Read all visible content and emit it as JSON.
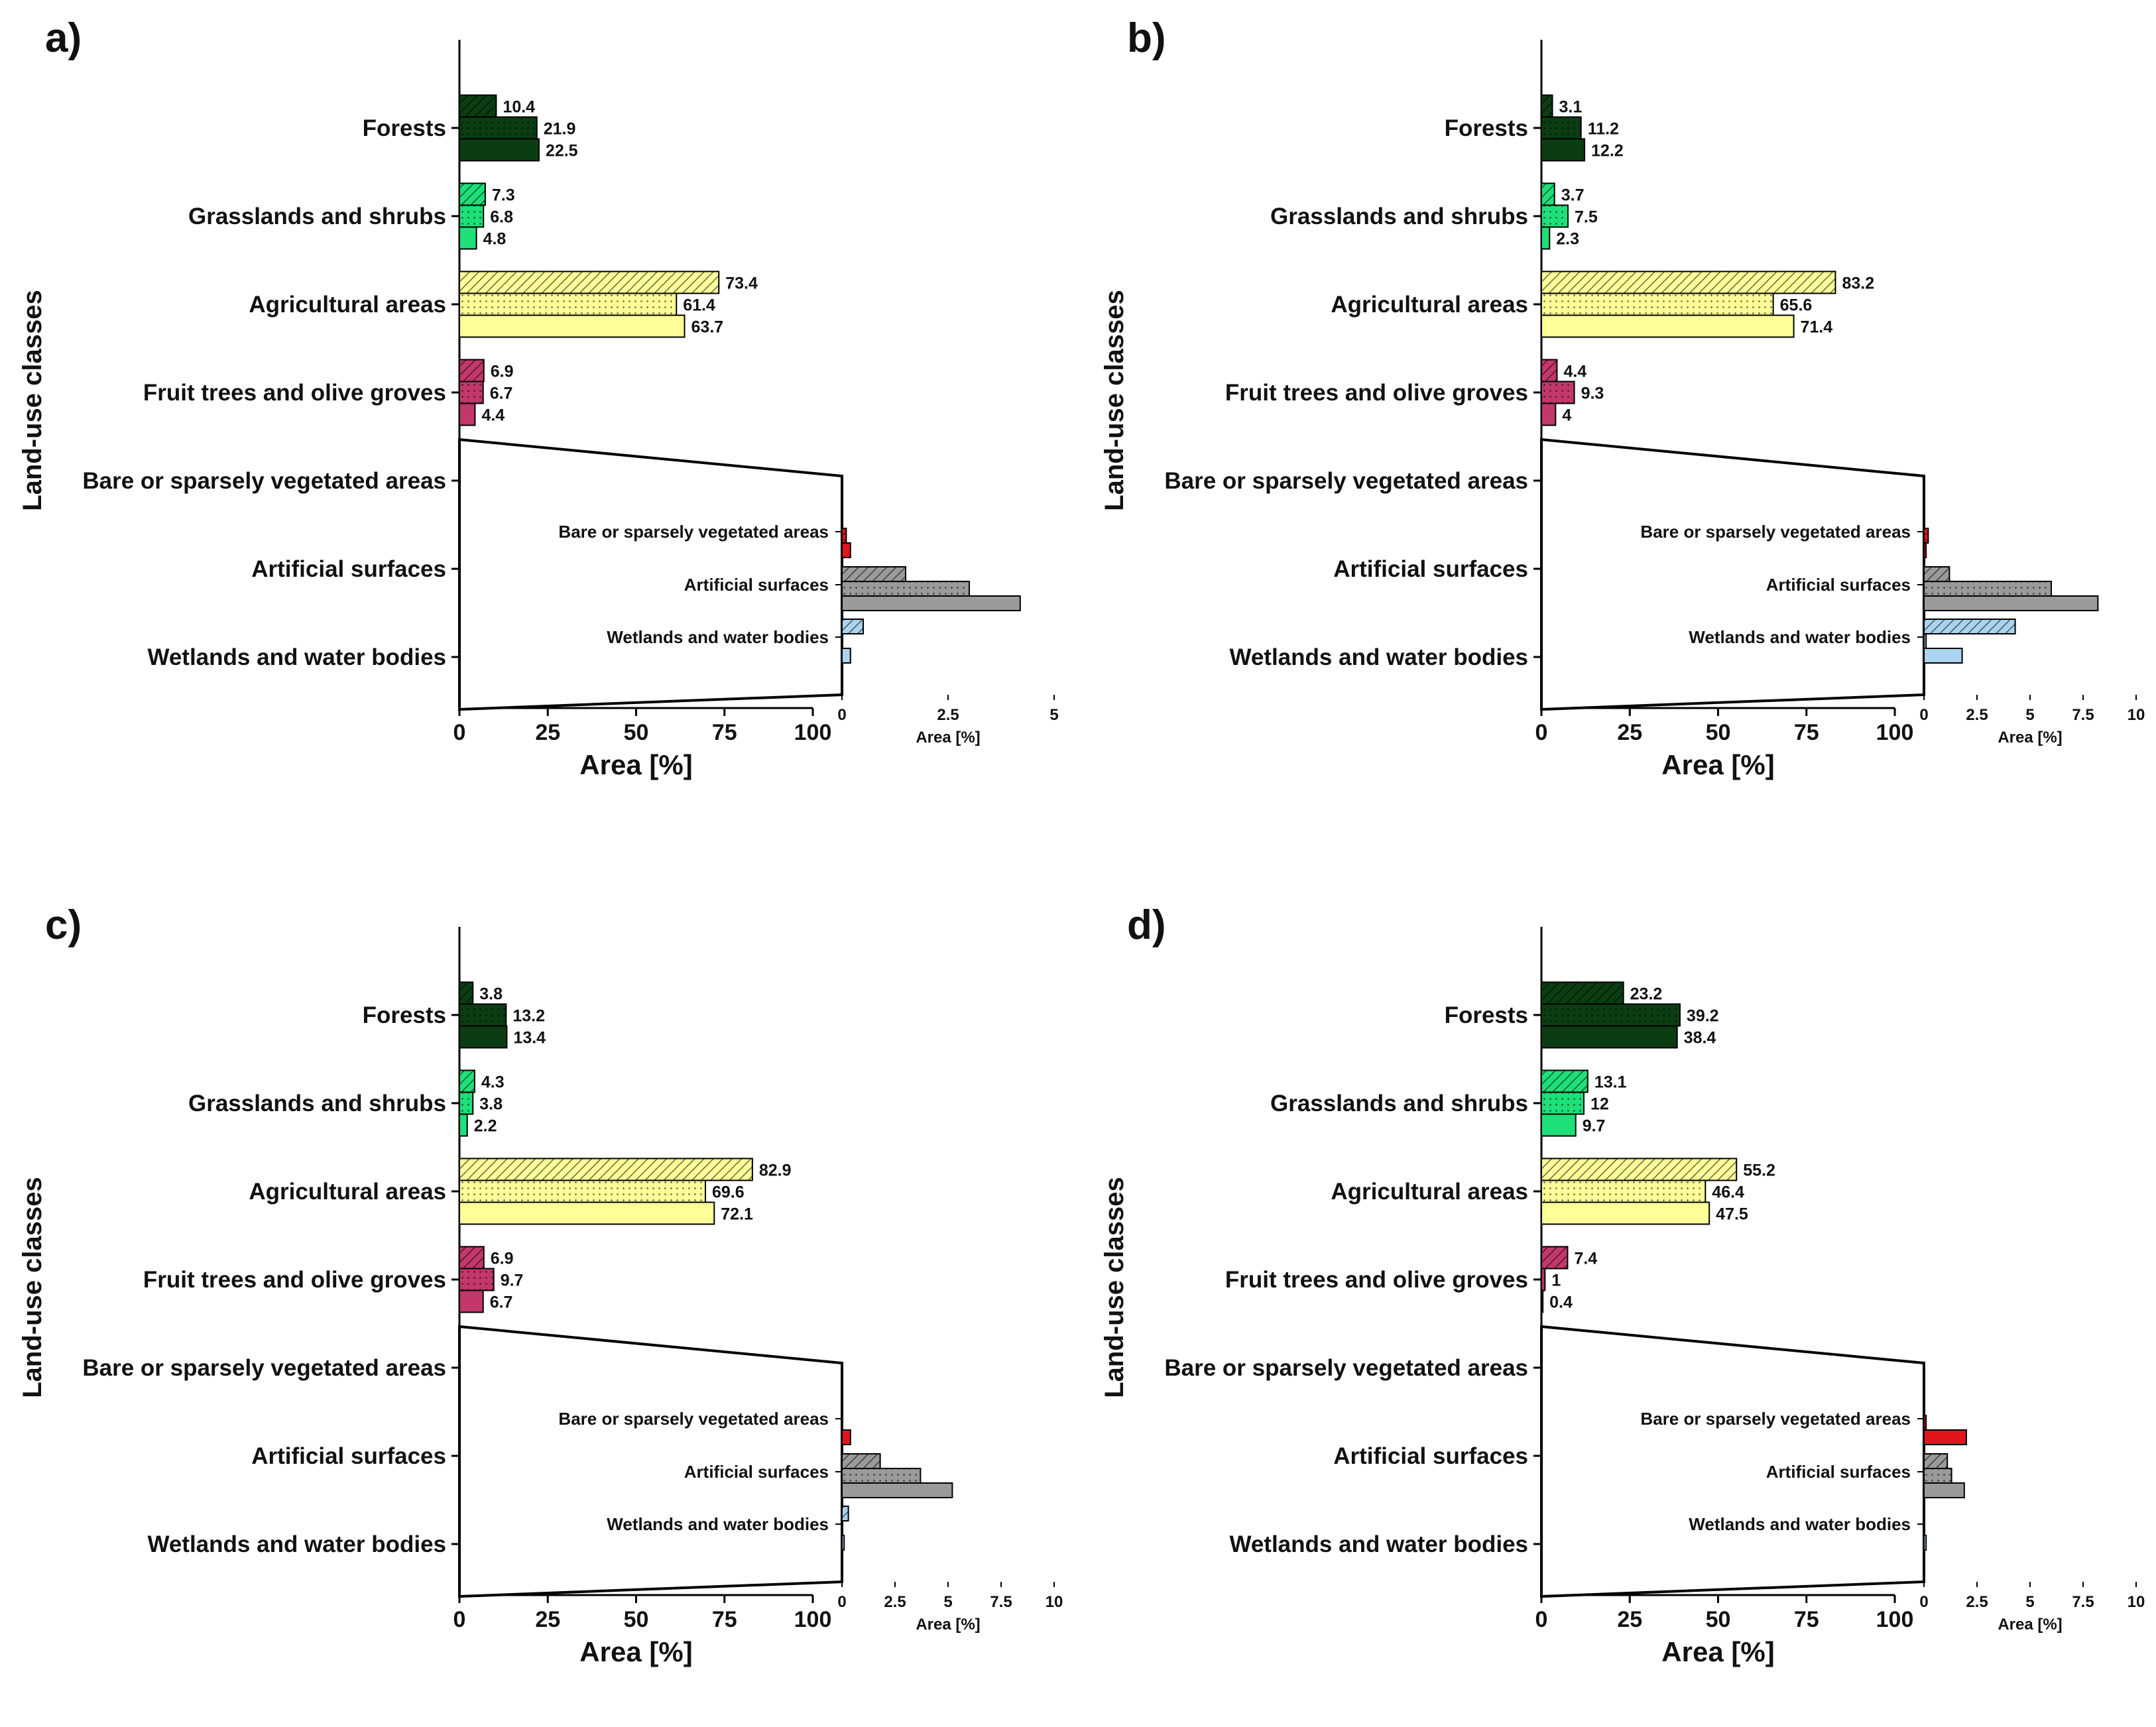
{
  "figure": {
    "y_axis_label": "Land-use classes",
    "x_axis_label": "Area [%]",
    "inset_x_axis_label": "Area [%]",
    "main_x_ticks": [
      "0",
      "25",
      "50",
      "75",
      "100"
    ],
    "categories": [
      "Forests",
      "Grasslands and shrubs",
      "Agricultural areas",
      "Fruit trees and olive groves",
      "Bare or sparsely vegetated areas",
      "Artificial surfaces",
      "Wetlands and water bodies"
    ],
    "inset_categories": [
      "Bare or sparsely vegetated areas",
      "Artificial surfaces",
      "Wetlands and water bodies"
    ],
    "category_colors": {
      "Forests": "#0b3d12",
      "Grasslands and shrubs": "#1ee078",
      "Agricultural areas": "#ffff99",
      "Fruit trees and olive groves": "#c2386b",
      "Bare or sparsely vegetated areas": "#e0161c",
      "Artificial surfaces": "#9a9a9a",
      "Wetlands and water bodies": "#a9d3ee"
    },
    "bar_patterns": [
      "hatched",
      "dotted",
      "solid"
    ]
  },
  "chart_data": [
    {
      "type": "bar",
      "panel": "a)",
      "orientation": "horizontal",
      "categories": [
        "Forests",
        "Grasslands and shrubs",
        "Agricultural areas",
        "Fruit trees and olive groves",
        "Bare or sparsely vegetated areas",
        "Artificial surfaces",
        "Wetlands and water bodies"
      ],
      "series": [
        {
          "name": "hatched",
          "values": [
            10.4,
            7.3,
            73.4,
            6.9,
            0,
            1.5,
            0.5
          ]
        },
        {
          "name": "dotted",
          "values": [
            21.9,
            6.8,
            61.4,
            6.7,
            0.1,
            3,
            0
          ]
        },
        {
          "name": "solid",
          "values": [
            22.5,
            4.8,
            63.7,
            4.4,
            0.2,
            4.2,
            0.2
          ]
        }
      ],
      "labels": [
        [
          "10.4",
          "21.9",
          "22.5"
        ],
        [
          "7.3",
          "6.8",
          "4.8"
        ],
        [
          "73.4",
          "61.4",
          "63.7"
        ],
        [
          "6.9",
          "6.7",
          "4.4"
        ],
        [
          "0",
          "0.1",
          "0.2"
        ],
        [
          "1.5",
          "3",
          "4.2"
        ],
        [
          "0.5",
          "0",
          "0.2"
        ]
      ],
      "xlim": [
        0,
        100
      ],
      "xlabel": "Area [%]",
      "ylabel": "Land-use classes",
      "inset": {
        "xlim": [
          0,
          5
        ],
        "ticks": [
          "0",
          "2.5",
          "5"
        ],
        "xlabel": "Area [%]"
      }
    },
    {
      "type": "bar",
      "panel": "b)",
      "orientation": "horizontal",
      "categories": [
        "Forests",
        "Grasslands and shrubs",
        "Agricultural areas",
        "Fruit trees and olive groves",
        "Bare or sparsely vegetated areas",
        "Artificial surfaces",
        "Wetlands and water bodies"
      ],
      "series": [
        {
          "name": "hatched",
          "values": [
            3.1,
            3.7,
            83.2,
            4.4,
            0,
            1.2,
            4.3
          ]
        },
        {
          "name": "dotted",
          "values": [
            11.2,
            7.5,
            65.6,
            9.3,
            0.2,
            6,
            0.1
          ]
        },
        {
          "name": "solid",
          "values": [
            12.2,
            2.3,
            71.4,
            4,
            0.1,
            8.2,
            1.8
          ]
        }
      ],
      "labels": [
        [
          "3.1",
          "11.2",
          "12.2"
        ],
        [
          "3.7",
          "7.5",
          "2.3"
        ],
        [
          "83.2",
          "65.6",
          "71.4"
        ],
        [
          "4.4",
          "9.3",
          "4"
        ],
        [
          "0",
          "0.2",
          "0.1"
        ],
        [
          "1.2",
          "6",
          "8.2"
        ],
        [
          "4.3",
          "0.1",
          "1.8"
        ]
      ],
      "xlim": [
        0,
        100
      ],
      "xlabel": "Area [%]",
      "ylabel": "Land-use classes",
      "inset": {
        "xlim": [
          0,
          10
        ],
        "ticks": [
          "0",
          "2.5",
          "5",
          "7.5",
          "10"
        ],
        "xlabel": "Area [%]"
      }
    },
    {
      "type": "bar",
      "panel": "c)",
      "orientation": "horizontal",
      "categories": [
        "Forests",
        "Grasslands and shrubs",
        "Agricultural areas",
        "Fruit trees and olive groves",
        "Bare or sparsely vegetated areas",
        "Artificial surfaces",
        "Wetlands and water bodies"
      ],
      "series": [
        {
          "name": "hatched",
          "values": [
            3.8,
            4.3,
            82.9,
            6.9,
            0,
            1.8,
            0.3
          ]
        },
        {
          "name": "dotted",
          "values": [
            13.2,
            3.8,
            69.6,
            9.7,
            0,
            3.7,
            0
          ]
        },
        {
          "name": "solid",
          "values": [
            13.4,
            2.2,
            72.1,
            6.7,
            0.4,
            5.2,
            0.1
          ]
        }
      ],
      "labels": [
        [
          "3.8",
          "13.2",
          "13.4"
        ],
        [
          "4.3",
          "3.8",
          "2.2"
        ],
        [
          "82.9",
          "69.6",
          "72.1"
        ],
        [
          "6.9",
          "9.7",
          "6.7"
        ],
        [
          "0",
          "0",
          "0.4"
        ],
        [
          "1.8",
          "3.7",
          "5.2"
        ],
        [
          "0.3",
          "0",
          "0.1"
        ]
      ],
      "xlim": [
        0,
        100
      ],
      "xlabel": "Area [%]",
      "ylabel": "Land-use classes",
      "inset": {
        "xlim": [
          0,
          10
        ],
        "ticks": [
          "0",
          "2.5",
          "5",
          "7.5",
          "10"
        ],
        "xlabel": "Area [%]"
      }
    },
    {
      "type": "bar",
      "panel": "d)",
      "orientation": "horizontal",
      "categories": [
        "Forests",
        "Grasslands and shrubs",
        "Agricultural areas",
        "Fruit trees and olive groves",
        "Bare or sparsely vegetated areas",
        "Artificial surfaces",
        "Wetlands and water bodies"
      ],
      "series": [
        {
          "name": "hatched",
          "values": [
            23.2,
            13.1,
            55.2,
            7.4,
            0,
            1.1,
            0
          ]
        },
        {
          "name": "dotted",
          "values": [
            39.2,
            12,
            46.4,
            1,
            0.1,
            1.3,
            0
          ]
        },
        {
          "name": "solid",
          "values": [
            38.4,
            9.7,
            47.5,
            0.4,
            2,
            1.9,
            0.1
          ]
        }
      ],
      "labels": [
        [
          "23.2",
          "39.2",
          "38.4"
        ],
        [
          "13.1",
          "12",
          "9.7"
        ],
        [
          "55.2",
          "46.4",
          "47.5"
        ],
        [
          "7.4",
          "1",
          "0.4"
        ],
        [
          "0",
          "0.1",
          "2"
        ],
        [
          "1.1",
          "1.3",
          "1.9"
        ],
        [
          "0",
          "0",
          "0.1"
        ]
      ],
      "xlim": [
        0,
        100
      ],
      "xlabel": "Area [%]",
      "ylabel": "Land-use classes",
      "inset": {
        "xlim": [
          0,
          10
        ],
        "ticks": [
          "0",
          "2.5",
          "5",
          "7.5",
          "10"
        ],
        "xlabel": "Area [%]"
      }
    }
  ]
}
